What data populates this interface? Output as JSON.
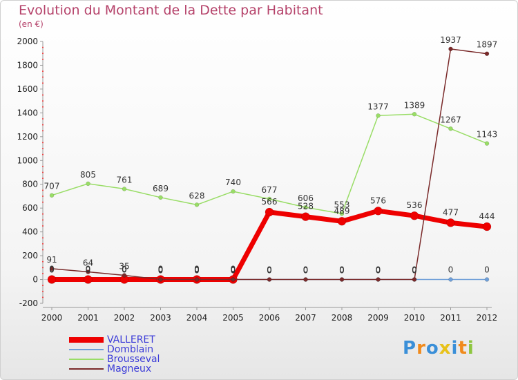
{
  "title": "Evolution du Montant de la Dette par Habitant",
  "subtitle": "(en €)",
  "logo_text": "Proxiti",
  "chart_data": {
    "type": "line",
    "title": "Evolution du Montant de la Dette par Habitant",
    "ylabel": "(en €)",
    "xlabel": "",
    "x": [
      "2000",
      "2001",
      "2002",
      "2003",
      "2004",
      "2005",
      "2006",
      "2007",
      "2008",
      "2009",
      "2010",
      "2011",
      "2012"
    ],
    "ylim": [
      -200,
      2000
    ],
    "yticks": [
      -200,
      0,
      200,
      400,
      600,
      800,
      1000,
      1200,
      1400,
      1600,
      1800,
      2000
    ],
    "grid": false,
    "legend_position": "bottom-left",
    "series": [
      {
        "name": "VALLERET",
        "color": "#ee0000",
        "values": [
          0,
          0,
          0,
          0,
          0,
          0,
          566,
          528,
          489,
          576,
          536,
          477,
          444
        ],
        "labels": [
          "0",
          "0",
          "0",
          "0",
          "0",
          "0",
          "566",
          "528",
          "489",
          "576",
          "536",
          "477",
          "444"
        ]
      },
      {
        "name": "Domblain",
        "color": "#6f9fd8",
        "values": [
          0,
          0,
          0,
          0,
          0,
          0,
          0,
          0,
          0,
          0,
          0,
          0,
          0
        ],
        "labels": [
          "0",
          "0",
          "0",
          "0",
          "0",
          "0",
          "0",
          "0",
          "0",
          "0",
          "0",
          "0",
          "0"
        ]
      },
      {
        "name": "Brousseval",
        "color": "#99dd66",
        "values": [
          707,
          805,
          761,
          689,
          628,
          740,
          677,
          606,
          553,
          1377,
          1389,
          1267,
          1143
        ],
        "labels": [
          "707",
          "805",
          "761",
          "689",
          "628",
          "740",
          "677",
          "606",
          "553",
          "1377",
          "1389",
          "1267",
          "1143"
        ]
      },
      {
        "name": "Magneux",
        "color": "#7a2a2a",
        "values": [
          91,
          64,
          35,
          0,
          0,
          0,
          0,
          0,
          0,
          0,
          0,
          1937,
          1897
        ],
        "labels": [
          "91",
          "64",
          "35",
          "0",
          "0",
          "0",
          "0",
          "0",
          "0",
          "0",
          "0",
          "1937",
          "1897"
        ]
      }
    ]
  }
}
